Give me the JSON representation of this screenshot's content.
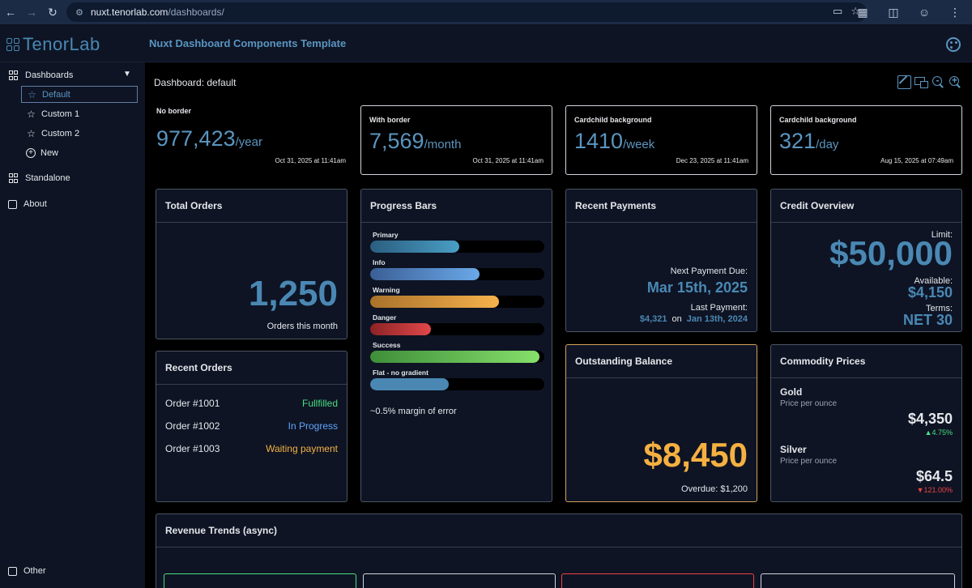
{
  "browser": {
    "url_host": "nuxt.tenorlab.com",
    "url_path": "/dashboards/"
  },
  "header": {
    "logo_text": "TenorLab",
    "title": "Nuxt Dashboard Components Template"
  },
  "sidebar": {
    "dashboards_label": "Dashboards",
    "items": [
      {
        "label": "Default"
      },
      {
        "label": "Custom 1"
      },
      {
        "label": "Custom 2"
      },
      {
        "label": "New"
      }
    ],
    "standalone_label": "Standalone",
    "about_label": "About",
    "other_label": "Other"
  },
  "main": {
    "dashboard_title": "Dashboard: default",
    "stats": [
      {
        "label": "No border",
        "value": "977,423",
        "unit": "/year",
        "time": "Oct 31, 2025 at 11:41am"
      },
      {
        "label": "With border",
        "value": "7,569",
        "unit": "/month",
        "time": "Oct 31, 2025 at 11:41am"
      },
      {
        "label": "Cardchild background",
        "value": "1410",
        "unit": "/week",
        "time": "Dec 23, 2025 at 11:41am"
      },
      {
        "label": "Cardchild background",
        "value": "321",
        "unit": "/day",
        "time": "Aug 15, 2025 at 07:49am"
      }
    ],
    "total_orders": {
      "title": "Total Orders",
      "value": "1,250",
      "caption": "Orders this month"
    },
    "progress": {
      "title": "Progress Bars",
      "bars": [
        {
          "label": "Primary",
          "level": 0.51
        },
        {
          "label": "Info",
          "level": 0.63
        },
        {
          "label": "Warning",
          "level": 0.74
        },
        {
          "label": "Danger",
          "level": 0.35
        },
        {
          "label": "Success",
          "level": 0.97
        },
        {
          "label": "Flat - no gradient",
          "level": 0.45
        }
      ],
      "footer": "~0.5% margin of error"
    },
    "recent_payments": {
      "title": "Recent Payments",
      "next_label": "Next Payment Due:",
      "next_date": "Mar 15th, 2025",
      "last_label": "Last Payment:",
      "last_amount": "$4,321",
      "on_label": "on",
      "last_date": "Jan 13th, 2024"
    },
    "credit": {
      "title": "Credit Overview",
      "limit_label": "Limit:",
      "limit_value": "$50,000",
      "available_label": "Available:",
      "available_value": "$4,150",
      "terms_label": "Terms:",
      "terms_value": "NET 30"
    },
    "recent_orders": {
      "title": "Recent Orders",
      "rows": [
        {
          "order": "Order #1001",
          "status": "Fullfilled"
        },
        {
          "order": "Order #1002",
          "status": "In Progress"
        },
        {
          "order": "Order #1003",
          "status": "Waiting payment"
        }
      ]
    },
    "outstanding": {
      "title": "Outstanding Balance",
      "value": "$8,450",
      "overdue": "Overdue: $1,200"
    },
    "commodities": {
      "title": "Commodity Prices",
      "items": [
        {
          "name": "Gold",
          "sub": "Price per ounce",
          "price": "$4,350",
          "change": "▲4.75%"
        },
        {
          "name": "Silver",
          "sub": "Price per ounce",
          "price": "$64.5",
          "change": "▼121.00%"
        }
      ]
    },
    "revenue": {
      "title": "Revenue Trends (async)"
    }
  },
  "colors": {
    "accent": "#4a88b3",
    "success": "#4ade80",
    "info": "#60a5fa",
    "warning": "#f5b041",
    "danger": "#ef4444",
    "panel": "#0e1424"
  }
}
